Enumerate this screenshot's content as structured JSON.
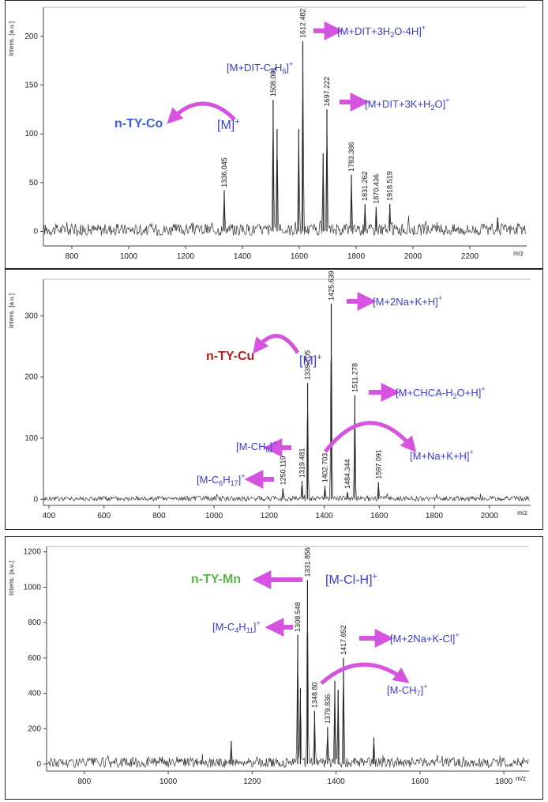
{
  "chart_data": [
    {
      "type": "line",
      "compound": "n-TY-Co",
      "compound_color": "#3a5fe0",
      "ylabel": "Intens. [a.u.]",
      "xlabel": "m/z",
      "xlim": [
        700,
        2400
      ],
      "ylim": [
        -15,
        230
      ],
      "xticks": [
        800,
        1000,
        1200,
        1400,
        1600,
        1800,
        2000,
        2200
      ],
      "yticks": [
        0,
        50,
        100,
        150,
        200
      ],
      "noise_amp": 6,
      "peaks": [
        {
          "x": 1336.045,
          "y": 42,
          "label": "1336.045"
        },
        {
          "x": 1508.001,
          "y": 135,
          "label": "1508.001"
        },
        {
          "x": 1522,
          "y": 105,
          "label": ""
        },
        {
          "x": 1598,
          "y": 105,
          "label": ""
        },
        {
          "x": 1612.482,
          "y": 195,
          "label": "1612.482"
        },
        {
          "x": 1684,
          "y": 80,
          "label": ""
        },
        {
          "x": 1697.222,
          "y": 125,
          "label": "1697.222"
        },
        {
          "x": 1783.386,
          "y": 58,
          "label": "1783.386"
        },
        {
          "x": 1831.262,
          "y": 28,
          "label": "1831.262"
        },
        {
          "x": 1870.436,
          "y": 25,
          "label": "1870.436"
        },
        {
          "x": 1918.519,
          "y": 28,
          "label": "1918.519"
        },
        {
          "x": 2298,
          "y": 14,
          "label": ""
        }
      ],
      "annotations": [
        {
          "text": "[M+DIT+3H₂O-4H]⁺",
          "peak": 1612.482,
          "arrow": "right"
        },
        {
          "text": "[M+DIT-C₄H₆]⁺",
          "peak": 1508.001,
          "arrow": "none"
        },
        {
          "text": "[M+DIT+3K+H₂O]⁺",
          "peak": 1697.222,
          "arrow": "right"
        },
        {
          "text": "[M]⁺",
          "peak": 1336.045,
          "arrow": "curved-left"
        }
      ],
      "arrow_color": "#d653e0"
    },
    {
      "type": "line",
      "compound": "n-TY-Cu",
      "compound_color": "#b02020",
      "ylabel": "Intens. [a.u.]",
      "xlabel": "m/z",
      "xlim": [
        380,
        2150
      ],
      "ylim": [
        -10,
        360
      ],
      "xticks": [
        400,
        600,
        800,
        1000,
        1200,
        1400,
        1600,
        1800,
        2000
      ],
      "yticks": [
        0,
        100,
        200,
        300
      ],
      "noise_amp": 4,
      "peaks": [
        {
          "x": 1250.119,
          "y": 18,
          "label": "1250.119"
        },
        {
          "x": 1319.481,
          "y": 30,
          "label": "1319.481"
        },
        {
          "x": 1339.705,
          "y": 190,
          "label": "1339.705"
        },
        {
          "x": 1402.703,
          "y": 22,
          "label": "1402.703"
        },
        {
          "x": 1425.639,
          "y": 320,
          "label": "1425.639"
        },
        {
          "x": 1484.344,
          "y": 12,
          "label": "1484.344"
        },
        {
          "x": 1511.278,
          "y": 170,
          "label": "1511.278"
        },
        {
          "x": 1597.091,
          "y": 28,
          "label": "1597.091"
        }
      ],
      "annotations": [
        {
          "text": "[M+2Na+K+H]⁺",
          "peak": 1425.639,
          "arrow": "right"
        },
        {
          "text": "[M]⁺",
          "peak": 1339.705,
          "arrow": "curved-left"
        },
        {
          "text": "[M+CHCA-H₂O+H]⁺",
          "peak": 1511.278,
          "arrow": "right"
        },
        {
          "text": "[M-CH₈]⁺",
          "peak": 1319.481,
          "arrow": "left"
        },
        {
          "text": "[M+Na+K+H]⁺",
          "peak": 1402.703,
          "arrow": "curved-right"
        },
        {
          "text": "[M-C₆H₁₇]⁺",
          "peak": 1250.119,
          "arrow": "left"
        }
      ],
      "arrow_color": "#d653e0"
    },
    {
      "type": "line",
      "compound": "n-TY-Mn",
      "compound_color": "#5ab54a",
      "ylabel": "Intens. [a.u.]",
      "xlabel": "m/z",
      "xlim": [
        710,
        1860
      ],
      "ylim": [
        -40,
        1230
      ],
      "xticks": [
        800,
        1000,
        1200,
        1400,
        1600,
        1800
      ],
      "yticks": [
        0,
        200,
        400,
        600,
        800,
        1000,
        1200
      ],
      "noise_amp": 28,
      "peaks": [
        {
          "x": 1308.548,
          "y": 730,
          "label": "1308.548"
        },
        {
          "x": 1315,
          "y": 430,
          "label": ""
        },
        {
          "x": 1331.856,
          "y": 1040,
          "label": "1331.856"
        },
        {
          "x": 1348.8,
          "y": 300,
          "label": "1348.80"
        },
        {
          "x": 1379.836,
          "y": 210,
          "label": "1379.836"
        },
        {
          "x": 1397,
          "y": 470,
          "label": ""
        },
        {
          "x": 1405,
          "y": 420,
          "label": ""
        },
        {
          "x": 1417.652,
          "y": 600,
          "label": "1417.652"
        },
        {
          "x": 1150,
          "y": 130,
          "label": ""
        },
        {
          "x": 1490,
          "y": 150,
          "label": ""
        }
      ],
      "annotations": [
        {
          "text": "[M-Cl-H]⁺",
          "peak": 1331.856,
          "arrow": "left"
        },
        {
          "text": "[M-C₄H₁₁]⁺",
          "peak": 1308.548,
          "arrow": "left"
        },
        {
          "text": "[M+2Na+K-Cl]⁺",
          "peak": 1417.652,
          "arrow": "right"
        },
        {
          "text": "[M-CH₇]⁺",
          "peak": 1348.8,
          "arrow": "curved-right"
        }
      ],
      "arrow_color": "#d653e0"
    }
  ]
}
